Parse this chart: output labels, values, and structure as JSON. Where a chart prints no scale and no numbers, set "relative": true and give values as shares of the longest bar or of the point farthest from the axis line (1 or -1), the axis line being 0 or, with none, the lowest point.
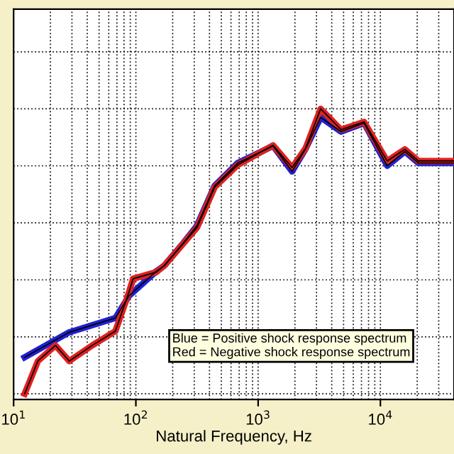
{
  "chart_data": {
    "type": "line",
    "relative": true,
    "log": "x",
    "xlabel": "Natural Frequency, Hz",
    "xlim": [
      10,
      40000
    ],
    "xticks": [
      {
        "value": 10,
        "label": "10$^{1}$"
      },
      {
        "value": 100,
        "label": "10$^{2}$"
      },
      {
        "value": 1000,
        "label": "10$^{3}$"
      },
      {
        "value": 10000,
        "label": "10$^{4}$"
      }
    ],
    "grid": true,
    "line_style": "solid",
    "annotations": [
      "Blue = Positive shock response spectrum",
      "Red = Negative shock response spectrum"
    ],
    "series": [
      {
        "color": "#2020d0",
        "x": [
          12.3,
          28.5,
          68,
          88,
          147,
          171,
          245,
          316,
          441,
          681,
          1325,
          1896,
          2447,
          3246,
          4762,
          7356,
          11360,
          15850,
          20460,
          40000
        ],
        "values": [
          0.128,
          0.216,
          0.266,
          0.344,
          0.43,
          0.45,
          0.53,
          0.59,
          0.73,
          0.81,
          0.87,
          0.78,
          0.86,
          0.97,
          0.92,
          0.95,
          0.8,
          0.85,
          0.81,
          0.81
        ]
      },
      {
        "color": "#e02020",
        "x": [
          12.3,
          15.8,
          22,
          28.5,
          44,
          68,
          88,
          95,
          147,
          171,
          245,
          316,
          441,
          681,
          1325,
          1896,
          2447,
          3246,
          4762,
          7356,
          11360,
          15850,
          20460,
          40000
        ],
        "values": [
          0,
          0.115,
          0.17,
          0.115,
          0.17,
          0.22,
          0.358,
          0.404,
          0.427,
          0.45,
          0.528,
          0.583,
          0.725,
          0.803,
          0.872,
          0.794,
          0.862,
          1,
          0.927,
          0.954,
          0.817,
          0.858,
          0.817,
          0.817
        ]
      }
    ]
  }
}
